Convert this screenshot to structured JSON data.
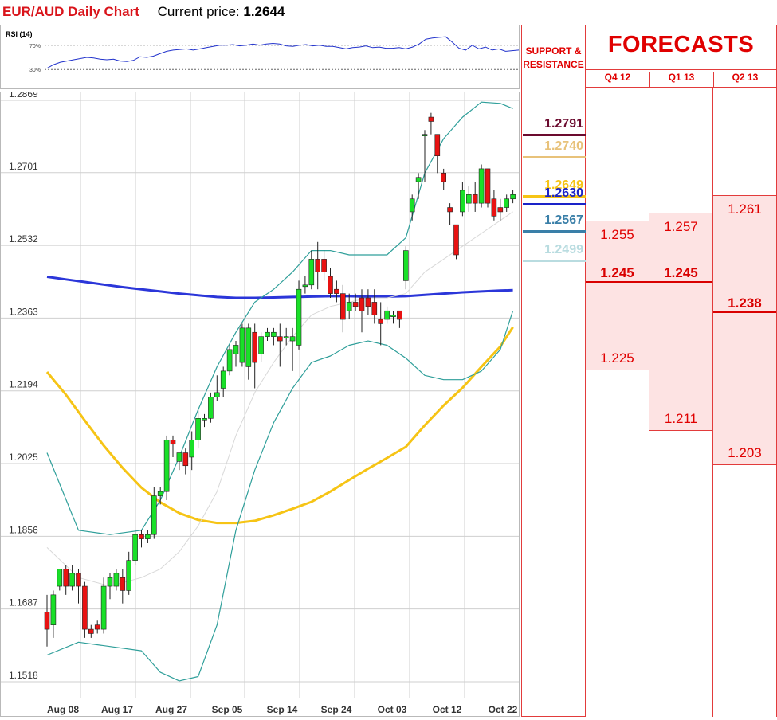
{
  "header": {
    "pair_title": "EUR/AUD Daily Chart",
    "price_label": "Current price:",
    "price_value": "1.2644"
  },
  "rsi": {
    "label": "RSI (14)",
    "level_labels": [
      "70%",
      "30%"
    ],
    "levels": [
      70,
      30
    ],
    "values": [
      32,
      38,
      42,
      44,
      46,
      48,
      50,
      49,
      47,
      46,
      47,
      44,
      43,
      45,
      51,
      50,
      52,
      56,
      60,
      62,
      63,
      64,
      62,
      64,
      66,
      68,
      70,
      70,
      71,
      69,
      70,
      72,
      70,
      72,
      73,
      72,
      69,
      68,
      70,
      71,
      69,
      70,
      68,
      68,
      66,
      64,
      66,
      67,
      69,
      66,
      67,
      65,
      65,
      66,
      64,
      67,
      72,
      80,
      82,
      83,
      84,
      75,
      65,
      62,
      70,
      64,
      67,
      62,
      64,
      60,
      61,
      62
    ]
  },
  "chart_data": {
    "type": "candlestick",
    "title": "EUR/AUD Daily Chart",
    "yticks": [
      "1.2869",
      "1.2701",
      "1.2532",
      "1.2363",
      "1.2194",
      "1.2025",
      "1.1856",
      "1.1687",
      "1.1518"
    ],
    "ylim": [
      1.1518,
      1.2869
    ],
    "xticks": [
      "Aug 08",
      "Aug 17",
      "Aug 27",
      "Sep 05",
      "Sep 14",
      "Sep 24",
      "Oct 03",
      "Oct 12",
      "Oct 22"
    ],
    "grid": true,
    "candles": [
      [
        1.168,
        1.172,
        1.164,
        1.16
      ],
      [
        1.165,
        1.173,
        1.172,
        1.162
      ],
      [
        1.174,
        1.178,
        1.178,
        1.173
      ],
      [
        1.178,
        1.179,
        1.174,
        1.172
      ],
      [
        1.174,
        1.179,
        1.177,
        1.173
      ],
      [
        1.177,
        1.178,
        1.174,
        1.17
      ],
      [
        1.174,
        1.175,
        1.164,
        1.162
      ],
      [
        1.164,
        1.165,
        1.163,
        1.162
      ],
      [
        1.165,
        1.166,
        1.164,
        1.163
      ],
      [
        1.164,
        1.176,
        1.174,
        1.163
      ],
      [
        1.174,
        1.177,
        1.176,
        1.171
      ],
      [
        1.174,
        1.178,
        1.177,
        1.173
      ],
      [
        1.176,
        1.178,
        1.173,
        1.17
      ],
      [
        1.173,
        1.182,
        1.18,
        1.172
      ],
      [
        1.18,
        1.187,
        1.186,
        1.179
      ],
      [
        1.186,
        1.187,
        1.185,
        1.183
      ],
      [
        1.185,
        1.187,
        1.186,
        1.184
      ],
      [
        1.186,
        1.197,
        1.195,
        1.185
      ],
      [
        1.195,
        1.197,
        1.196,
        1.193
      ],
      [
        1.196,
        1.209,
        1.208,
        1.194
      ],
      [
        1.208,
        1.209,
        1.207,
        1.204
      ],
      [
        1.203,
        1.205,
        1.205,
        1.201
      ],
      [
        1.205,
        1.206,
        1.202,
        1.2
      ],
      [
        1.204,
        1.21,
        1.208,
        1.201
      ],
      [
        1.208,
        1.215,
        1.213,
        1.206
      ],
      [
        1.213,
        1.214,
        1.213,
        1.211
      ],
      [
        1.213,
        1.219,
        1.218,
        1.212
      ],
      [
        1.218,
        1.223,
        1.219,
        1.217
      ],
      [
        1.22,
        1.225,
        1.224,
        1.218
      ],
      [
        1.224,
        1.23,
        1.229,
        1.223
      ],
      [
        1.228,
        1.231,
        1.23,
        1.225
      ],
      [
        1.226,
        1.235,
        1.234,
        1.225
      ],
      [
        1.225,
        1.235,
        1.234,
        1.222
      ],
      [
        1.233,
        1.235,
        1.226,
        1.22
      ],
      [
        1.228,
        1.233,
        1.232,
        1.226
      ],
      [
        1.232,
        1.234,
        1.233,
        1.231
      ],
      [
        1.232,
        1.234,
        1.233,
        1.23
      ],
      [
        1.232,
        1.235,
        1.231,
        1.225
      ],
      [
        1.232,
        1.234,
        1.232,
        1.23
      ],
      [
        1.231,
        1.234,
        1.232,
        1.224
      ],
      [
        1.23,
        1.245,
        1.243,
        1.229
      ],
      [
        1.244,
        1.246,
        1.244,
        1.242
      ],
      [
        1.244,
        1.252,
        1.25,
        1.243
      ],
      [
        1.25,
        1.254,
        1.247,
        1.243
      ],
      [
        1.25,
        1.252,
        1.247,
        1.245
      ],
      [
        1.246,
        1.248,
        1.242,
        1.241
      ],
      [
        1.243,
        1.245,
        1.242,
        1.24
      ],
      [
        1.242,
        1.244,
        1.236,
        1.233
      ],
      [
        1.238,
        1.242,
        1.24,
        1.236
      ],
      [
        1.24,
        1.242,
        1.239,
        1.238
      ],
      [
        1.241,
        1.243,
        1.238,
        1.233
      ],
      [
        1.241,
        1.243,
        1.239,
        1.237
      ],
      [
        1.24,
        1.243,
        1.237,
        1.235
      ],
      [
        1.236,
        1.24,
        1.235,
        1.23
      ],
      [
        1.236,
        1.239,
        1.238,
        1.235
      ],
      [
        1.237,
        1.238,
        1.237,
        1.235
      ],
      [
        1.238,
        1.238,
        1.236,
        1.234
      ],
      [
        1.245,
        1.253,
        1.252,
        1.243
      ],
      [
        1.261,
        1.265,
        1.264,
        1.259
      ],
      [
        1.268,
        1.27,
        1.269,
        1.264
      ],
      [
        1.279,
        1.28,
        1.279,
        1.268
      ],
      [
        1.283,
        1.284,
        1.282,
        1.279
      ],
      [
        1.279,
        1.279,
        1.274,
        1.27
      ],
      [
        1.27,
        1.271,
        1.268,
        1.266
      ],
      [
        1.262,
        1.263,
        1.261,
        1.258
      ],
      [
        1.258,
        1.258,
        1.251,
        1.25
      ],
      [
        1.261,
        1.268,
        1.266,
        1.26
      ],
      [
        1.263,
        1.267,
        1.265,
        1.261
      ],
      [
        1.265,
        1.268,
        1.263,
        1.261
      ],
      [
        1.263,
        1.272,
        1.271,
        1.262
      ],
      [
        1.271,
        1.271,
        1.263,
        1.262
      ],
      [
        1.264,
        1.266,
        1.26,
        1.259
      ],
      [
        1.262,
        1.264,
        1.261,
        1.259
      ],
      [
        1.262,
        1.265,
        1.264,
        1.261
      ],
      [
        1.264,
        1.266,
        1.265,
        1.263
      ]
    ],
    "series": [
      {
        "type": "sma",
        "color": "#2b36d9",
        "values": [
          [
            0,
            1.2459
          ],
          [
            3,
            1.2453
          ],
          [
            6,
            1.2447
          ],
          [
            9,
            1.2441
          ],
          [
            12,
            1.2435
          ],
          [
            15,
            1.243
          ],
          [
            18,
            1.2425
          ],
          [
            21,
            1.242
          ],
          [
            24,
            1.2416
          ],
          [
            27,
            1.2412
          ],
          [
            30,
            1.241
          ],
          [
            33,
            1.241
          ],
          [
            36,
            1.2411
          ],
          [
            39,
            1.2412
          ],
          [
            42,
            1.2413
          ],
          [
            45,
            1.2414
          ],
          [
            48,
            1.2414
          ],
          [
            51,
            1.2413
          ],
          [
            54,
            1.2413
          ],
          [
            57,
            1.2414
          ],
          [
            60,
            1.2417
          ],
          [
            63,
            1.242
          ],
          [
            66,
            1.2423
          ],
          [
            69,
            1.2425
          ],
          [
            72,
            1.2427
          ],
          [
            74,
            1.2428
          ]
        ]
      },
      {
        "type": "sma",
        "color": "#f6c415",
        "values": [
          [
            0,
            1.2238
          ],
          [
            3,
            1.2185
          ],
          [
            6,
            1.2125
          ],
          [
            9,
            1.2067
          ],
          [
            12,
            1.2015
          ],
          [
            15,
            1.1969
          ],
          [
            18,
            1.1935
          ],
          [
            21,
            1.191
          ],
          [
            24,
            1.1894
          ],
          [
            27,
            1.1887
          ],
          [
            30,
            1.1887
          ],
          [
            33,
            1.1892
          ],
          [
            36,
            1.1905
          ],
          [
            39,
            1.192
          ],
          [
            42,
            1.1936
          ],
          [
            45,
            1.196
          ],
          [
            48,
            1.1987
          ],
          [
            51,
            1.2013
          ],
          [
            54,
            1.2038
          ],
          [
            57,
            1.2064
          ],
          [
            60,
            1.2114
          ],
          [
            63,
            1.216
          ],
          [
            66,
            1.2201
          ],
          [
            69,
            1.225
          ],
          [
            72,
            1.2297
          ],
          [
            74,
            1.2342
          ]
        ]
      },
      {
        "type": "bb_upper",
        "color": "#2f9f9a",
        "values": [
          [
            0,
            1.205
          ],
          [
            5,
            1.187
          ],
          [
            10,
            1.186
          ],
          [
            15,
            1.187
          ],
          [
            18,
            1.194
          ],
          [
            21,
            1.204
          ],
          [
            24,
            1.215
          ],
          [
            27,
            1.225
          ],
          [
            30,
            1.233
          ],
          [
            33,
            1.24
          ],
          [
            36,
            1.243
          ],
          [
            39,
            1.247
          ],
          [
            42,
            1.252
          ],
          [
            45,
            1.252
          ],
          [
            48,
            1.251
          ],
          [
            51,
            1.251
          ],
          [
            54,
            1.251
          ],
          [
            57,
            1.255
          ],
          [
            60,
            1.27
          ],
          [
            63,
            1.278
          ],
          [
            66,
            1.283
          ],
          [
            69,
            1.2865
          ],
          [
            72,
            1.2862
          ],
          [
            74,
            1.285
          ]
        ]
      },
      {
        "type": "bb_lower",
        "color": "#2f9f9a",
        "values": [
          [
            0,
            1.158
          ],
          [
            5,
            1.161
          ],
          [
            10,
            1.16
          ],
          [
            15,
            1.159
          ],
          [
            18,
            1.154
          ],
          [
            21,
            1.152
          ],
          [
            24,
            1.153
          ],
          [
            27,
            1.165
          ],
          [
            30,
            1.187
          ],
          [
            33,
            1.201
          ],
          [
            36,
            1.212
          ],
          [
            39,
            1.22
          ],
          [
            42,
            1.226
          ],
          [
            45,
            1.2275
          ],
          [
            48,
            1.23
          ],
          [
            51,
            1.231
          ],
          [
            54,
            1.23
          ],
          [
            57,
            1.227
          ],
          [
            60,
            1.223
          ],
          [
            63,
            1.222
          ],
          [
            66,
            1.222
          ],
          [
            69,
            1.224
          ],
          [
            72,
            1.229
          ],
          [
            74,
            1.238
          ]
        ]
      },
      {
        "type": "bb_mid",
        "color": "#d8d8d8",
        "values": [
          [
            0,
            1.183
          ],
          [
            5,
            1.176
          ],
          [
            10,
            1.174
          ],
          [
            15,
            1.176
          ],
          [
            18,
            1.178
          ],
          [
            21,
            1.182
          ],
          [
            24,
            1.188
          ],
          [
            27,
            1.196
          ],
          [
            30,
            1.209
          ],
          [
            33,
            1.219
          ],
          [
            36,
            1.226
          ],
          [
            39,
            1.232
          ],
          [
            42,
            1.237
          ],
          [
            45,
            1.239
          ],
          [
            48,
            1.24
          ],
          [
            51,
            1.241
          ],
          [
            54,
            1.241
          ],
          [
            57,
            1.242
          ],
          [
            60,
            1.247
          ],
          [
            63,
            1.25
          ],
          [
            66,
            1.253
          ],
          [
            69,
            1.256
          ],
          [
            72,
            1.259
          ],
          [
            74,
            1.261
          ]
        ]
      }
    ]
  },
  "support_resistance": {
    "title_lines": [
      "SUPPORT &",
      "RESISTANCE"
    ],
    "levels": [
      {
        "value": "1.2791",
        "color": "#6b0a2e"
      },
      {
        "value": "1.2740",
        "color": "#e8c27a"
      },
      {
        "value": "1.2649",
        "color": "#f6c415"
      },
      {
        "value": "1.2630",
        "color": "#1a23c8"
      },
      {
        "value": "1.2567",
        "color": "#3a7fa8"
      },
      {
        "value": "1.2499",
        "color": "#b9dce0"
      }
    ]
  },
  "forecasts": {
    "title": "FORECASTS",
    "columns": [
      {
        "label": "Q4 12",
        "high": "1.255",
        "mid": "1.245",
        "low": "1.225"
      },
      {
        "label": "Q1 13",
        "high": "1.257",
        "mid": "1.245",
        "low": "1.211"
      },
      {
        "label": "Q2 13",
        "high": "1.261",
        "mid": "1.238",
        "low": "1.203"
      }
    ]
  }
}
